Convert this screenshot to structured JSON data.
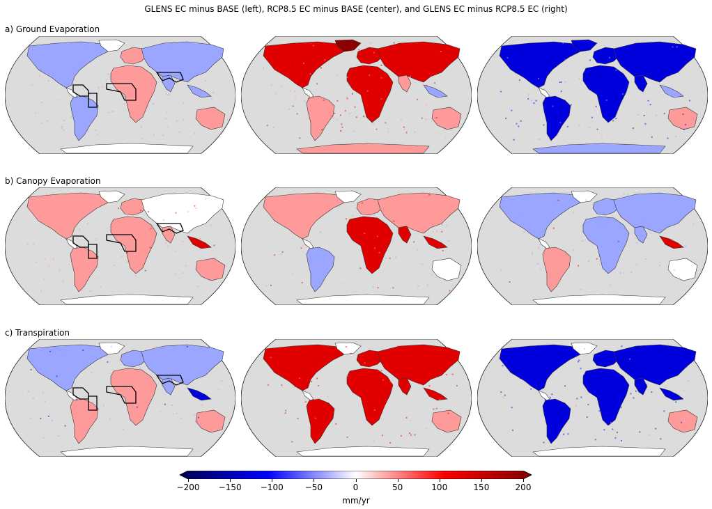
{
  "title": "GLENS EC minus BASE (left), RCP8.5 EC minus BASE (center), and GLENS EC minus RCP8.5 EC (right)",
  "rows": [
    {
      "label": "a) Ground Evaporation",
      "patterns": [
        "ge_left",
        "ge_center",
        "ge_right"
      ]
    },
    {
      "label": "b) Canopy Evaporation",
      "patterns": [
        "ce_left",
        "ce_center",
        "ce_right"
      ]
    },
    {
      "label": "c) Transpiration",
      "patterns": [
        "tr_left",
        "tr_center",
        "tr_right"
      ]
    }
  ],
  "colorbar": {
    "label": "mm/yr",
    "ticks": [
      "−200",
      "−150",
      "−100",
      "−50",
      "0",
      "50",
      "100",
      "150",
      "200"
    ],
    "min": -200,
    "max": 200,
    "cmap": "seismic",
    "extend": "both"
  },
  "colors": {
    "ocean": "#dcdcdc",
    "land": "#ffffff",
    "coast": "#333333",
    "strong_blue": "#0000dd",
    "light_blue": "#9aa6ff",
    "strong_red": "#e00000",
    "light_red": "#ff9a9a",
    "dark_red": "#8b0000"
  },
  "regions_note_icon": "region-box-outlines"
}
